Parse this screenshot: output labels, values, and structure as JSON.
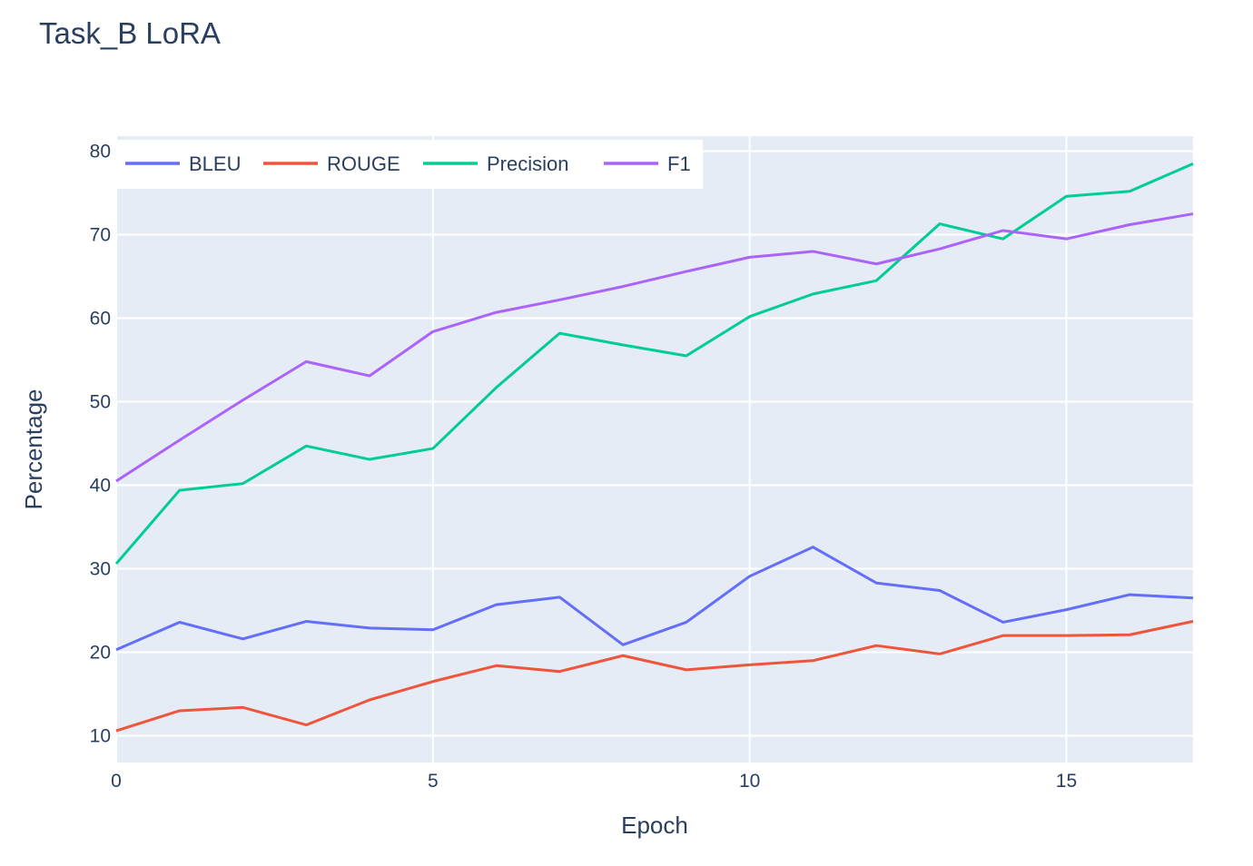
{
  "chart_data": {
    "type": "line",
    "title": "Task_B LoRA",
    "xlabel": "Epoch",
    "ylabel": "Percentage",
    "xlim": [
      0,
      17
    ],
    "ylim": [
      6.8,
      81.8
    ],
    "xticks": [
      0,
      5,
      10,
      15
    ],
    "yticks": [
      10,
      20,
      30,
      40,
      50,
      60,
      70,
      80
    ],
    "grid": true,
    "legend": "top-left, horizontal",
    "x": [
      0,
      1,
      2,
      3,
      4,
      5,
      6,
      7,
      8,
      9,
      10,
      11,
      12,
      13,
      14,
      15,
      16,
      17
    ],
    "series": [
      {
        "name": "BLEU",
        "color": "#636efa",
        "values": [
          20.3,
          23.6,
          21.6,
          23.7,
          22.9,
          22.7,
          25.7,
          26.6,
          20.9,
          23.6,
          29.1,
          32.6,
          28.3,
          27.4,
          23.6,
          25.1,
          26.9,
          26.5
        ]
      },
      {
        "name": "ROUGE",
        "color": "#ef553b",
        "values": [
          10.6,
          13.0,
          13.4,
          11.3,
          14.3,
          16.5,
          18.4,
          17.7,
          19.6,
          17.9,
          18.5,
          19.0,
          20.8,
          19.8,
          22.0,
          22.0,
          22.1,
          23.7
        ]
      },
      {
        "name": "Precision",
        "color": "#00cc96",
        "values": [
          30.6,
          39.4,
          40.2,
          44.7,
          43.1,
          44.4,
          51.7,
          58.2,
          56.8,
          55.5,
          60.2,
          62.9,
          64.5,
          71.3,
          69.5,
          74.6,
          75.2,
          78.5
        ]
      },
      {
        "name": "F1",
        "color": "#ab63fa",
        "values": [
          40.5,
          45.4,
          50.2,
          54.8,
          53.1,
          58.4,
          60.7,
          62.2,
          63.8,
          65.6,
          67.3,
          68.0,
          66.5,
          68.3,
          70.5,
          69.5,
          71.2,
          72.5
        ]
      }
    ]
  }
}
